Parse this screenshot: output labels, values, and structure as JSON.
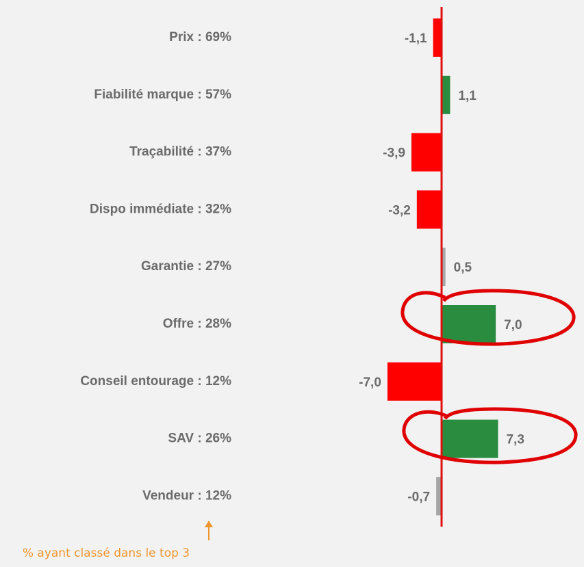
{
  "chart_data": {
    "type": "bar",
    "categories": [
      "Prix : 69%",
      "Fiabilité marque : 57%",
      "Traçabilité : 37%",
      "Dispo immédiate : 32%",
      "Garantie : 27%",
      "Offre : 28%",
      "Conseil entourage : 12%",
      "SAV : 26%",
      "Vendeur : 12%"
    ],
    "values": [
      -1.1,
      1.1,
      -3.9,
      -3.2,
      0.5,
      7.0,
      -7.0,
      7.3,
      -0.7
    ],
    "value_labels": [
      "-1,1",
      "1,1",
      "-3,9",
      "-3,2",
      "0,5",
      "7,0",
      "-7,0",
      "7,3",
      "-0,7"
    ],
    "colors": [
      "#ff0000",
      "#2a8c3f",
      "#ff0000",
      "#ff0000",
      "#a6a6a6",
      "#2a8c3f",
      "#ff0000",
      "#2a8c3f",
      "#a6a6a6"
    ],
    "annotation": "% ayant classé dans le top 3"
  }
}
